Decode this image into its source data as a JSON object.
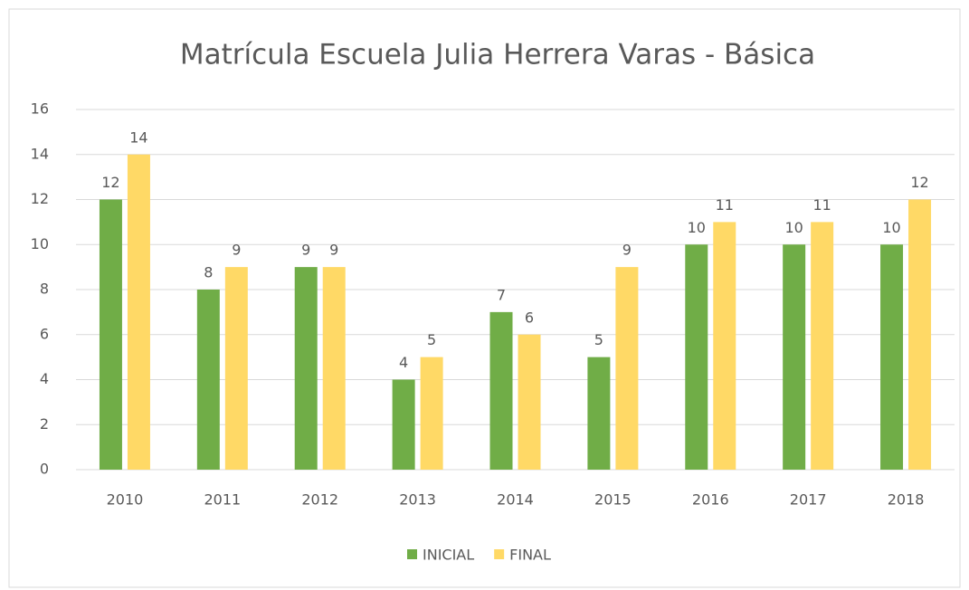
{
  "chart_data": {
    "type": "bar",
    "title": "Matrícula Escuela Julia Herrera Varas - Básica",
    "categories": [
      "2010",
      "2011",
      "2012",
      "2013",
      "2014",
      "2015",
      "2016",
      "2017",
      "2018"
    ],
    "series": [
      {
        "name": "INICIAL",
        "color": "#70ad47",
        "values": [
          12,
          8,
          9,
          4,
          7,
          5,
          10,
          10,
          10
        ]
      },
      {
        "name": "FINAL",
        "color": "#ffd966",
        "values": [
          14,
          9,
          9,
          5,
          6,
          9,
          11,
          11,
          12
        ]
      }
    ],
    "ylim": [
      0,
      16
    ],
    "yticks": [
      0,
      2,
      4,
      6,
      8,
      10,
      12,
      14,
      16
    ],
    "grid": true,
    "legend": "bottom"
  }
}
